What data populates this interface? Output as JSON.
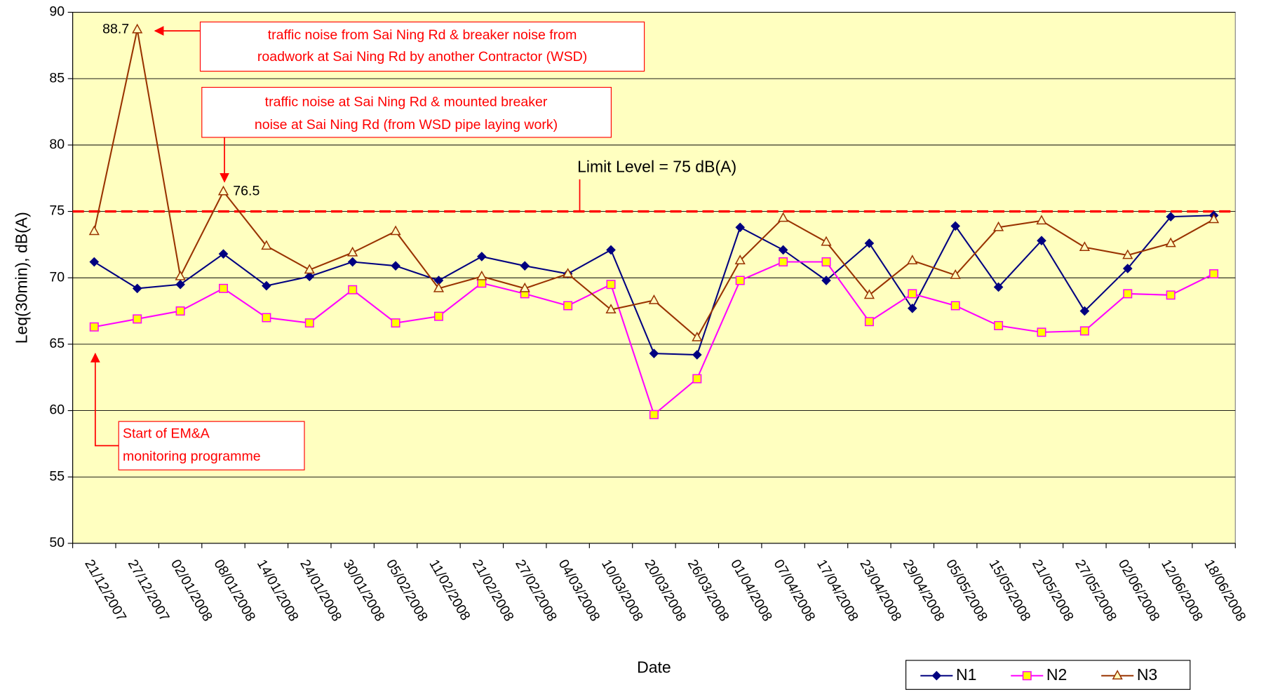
{
  "chart_data": {
    "type": "line",
    "xlabel": "Date",
    "ylabel": "Leq(30min),  dB(A)",
    "categories": [
      "21/12/2007",
      "27/12/2007",
      "02/01/2008",
      "08/01/2008",
      "14/01/2008",
      "24/01/2008",
      "30/01/2008",
      "05/02/2008",
      "11/02/2008",
      "21/02/2008",
      "27/02/2008",
      "04/03/2008",
      "10/03/2008",
      "20/03/2008",
      "26/03/2008",
      "01/04/2008",
      "07/04/2008",
      "17/04/2008",
      "23/04/2008",
      "29/04/2008",
      "05/05/2008",
      "15/05/2008",
      "21/05/2008",
      "27/05/2008",
      "02/06/2008",
      "12/06/2008",
      "18/06/2008"
    ],
    "series": [
      {
        "name": "N1",
        "color": "#000080",
        "marker": "diamond",
        "marker_fill": "#000080",
        "values": [
          71.2,
          69.2,
          69.5,
          71.8,
          69.4,
          70.1,
          71.2,
          70.9,
          69.8,
          71.6,
          70.9,
          70.3,
          72.1,
          64.3,
          64.2,
          73.8,
          72.1,
          69.8,
          72.6,
          67.7,
          73.9,
          69.3,
          72.8,
          67.5,
          70.7,
          74.6,
          74.7
        ]
      },
      {
        "name": "N2",
        "color": "#ff00ff",
        "marker": "square",
        "marker_fill": "#ffff00",
        "values": [
          66.3,
          66.9,
          67.5,
          69.2,
          67.0,
          66.6,
          69.1,
          66.6,
          67.1,
          69.6,
          68.8,
          67.9,
          69.5,
          59.7,
          62.4,
          69.8,
          71.2,
          71.2,
          66.7,
          68.8,
          67.9,
          66.4,
          65.9,
          66.0,
          68.8,
          68.7,
          70.3
        ]
      },
      {
        "name": "N3",
        "color": "#993300",
        "marker": "triangle",
        "marker_fill": "#ffffc0",
        "values": [
          73.5,
          88.7,
          70.1,
          76.5,
          72.4,
          70.6,
          71.9,
          73.5,
          69.2,
          70.1,
          69.2,
          70.3,
          67.6,
          68.3,
          65.5,
          71.3,
          74.5,
          72.7,
          68.7,
          71.3,
          70.2,
          73.8,
          74.3,
          72.3,
          71.7,
          72.6,
          74.4
        ]
      }
    ],
    "ylim": [
      50,
      90
    ],
    "yticks": [
      50,
      55,
      60,
      65,
      70,
      75,
      80,
      85,
      90
    ],
    "grid": true,
    "background": "#ffffc0",
    "limit": 75,
    "limit_label": "Limit Level = 75 dB(A)",
    "limit_color": "#ff0000",
    "legend": "bottom-right",
    "annotations": [
      {
        "lines": [
          "traffic noise from Sai Ning Rd & breaker noise from",
          "roadwork at Sai Ning Rd by another Contractor (WSD)"
        ]
      },
      {
        "lines": [
          "traffic noise at Sai Ning Rd & mounted breaker",
          "noise at Sai Ning Rd (from WSD pipe laying work)"
        ]
      },
      {
        "lines": [
          "Start of EM&A",
          "monitoring programme"
        ]
      }
    ]
  }
}
